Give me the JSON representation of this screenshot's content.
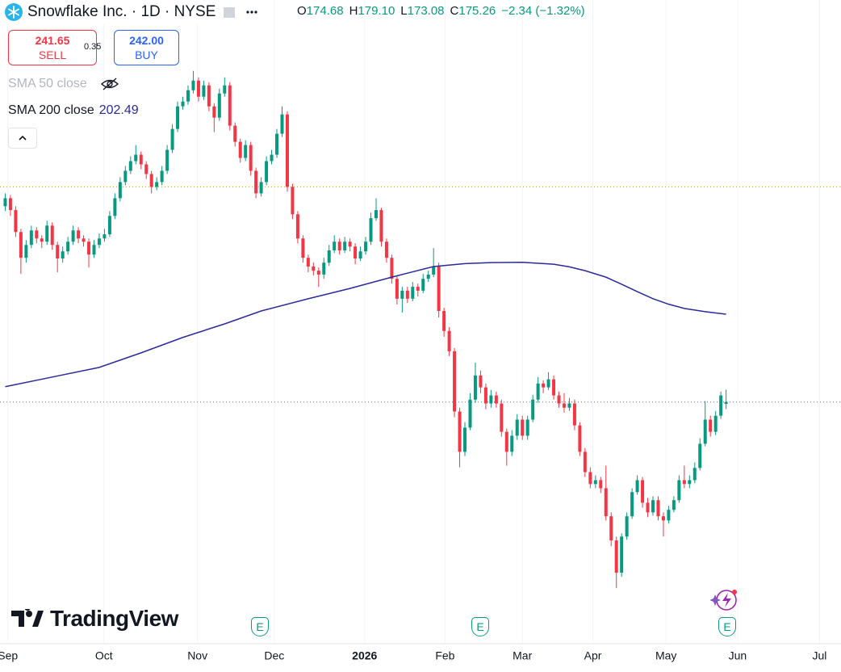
{
  "header": {
    "symbol": "Snowflake Inc. · 1D · NYSE",
    "ohlc": [
      {
        "label": "O",
        "value": "174.68"
      },
      {
        "label": "H",
        "value": "179.10"
      },
      {
        "label": "L",
        "value": "173.08"
      },
      {
        "label": "C",
        "value": "175.26"
      }
    ],
    "change": "−2.34 (−1.32%)"
  },
  "trade": {
    "sell": {
      "price": "241.65",
      "label": "SELL"
    },
    "spread": "0.35",
    "buy": {
      "price": "242.00",
      "label": "BUY"
    }
  },
  "indicators": {
    "sma50": "SMA 50 close",
    "sma200": "SMA 200 close"
  },
  "watermark": "TradingView",
  "events": [
    "E",
    "E",
    "E"
  ],
  "chart_data": {
    "type": "candlestick",
    "up_color": "#089981",
    "down_color": "#f23645",
    "xlim": [
      -1,
      160
    ],
    "ylim": [
      102,
      300
    ],
    "xticks": [
      {
        "value": 0.5,
        "label": "Sep"
      },
      {
        "value": 18.9,
        "label": "Oct"
      },
      {
        "value": 36.8,
        "label": "Nov"
      },
      {
        "value": 51.5,
        "label": "Dec"
      },
      {
        "value": 68.8,
        "label": "2026",
        "bold": true
      },
      {
        "value": 84.2,
        "label": "Feb"
      },
      {
        "value": 99,
        "label": "Mar"
      },
      {
        "value": 112.5,
        "label": "Apr"
      },
      {
        "value": 126.5,
        "label": "May"
      },
      {
        "value": 140.2,
        "label": "Jun"
      },
      {
        "value": 155.9,
        "label": "Jul"
      }
    ],
    "price_lines": [
      242,
      175.26
    ],
    "sma": {
      "color": "#2a2a9e",
      "x": [
        0,
        9,
        18,
        26,
        34,
        42,
        49,
        58,
        66,
        74,
        82,
        88,
        93,
        99,
        105,
        108,
        111,
        115,
        118,
        121,
        124,
        127,
        130,
        134,
        138
      ],
      "values": [
        180,
        183,
        186,
        190.5,
        195.3,
        199.5,
        203.5,
        207.3,
        210.5,
        214,
        217.3,
        218.2,
        218.5,
        218.6,
        218,
        217.2,
        216,
        214,
        211.8,
        209.5,
        207.3,
        205.6,
        204.3,
        203.3,
        202.49
      ]
    },
    "candles": [
      [
        236,
        240,
        234.5,
        238.5
      ],
      [
        238.5,
        239.5,
        233,
        234.8
      ],
      [
        234.8,
        236,
        226.5,
        228
      ],
      [
        228,
        229,
        215,
        220
      ],
      [
        220,
        225.5,
        218.5,
        224
      ],
      [
        224,
        230,
        223,
        228.5
      ],
      [
        228.5,
        229.5,
        224.5,
        226
      ],
      [
        226,
        227,
        223,
        225
      ],
      [
        225,
        231.5,
        224,
        230
      ],
      [
        230,
        231,
        222.5,
        224
      ],
      [
        224,
        225,
        215.5,
        219.8
      ],
      [
        219.8,
        223.5,
        218.5,
        222
      ],
      [
        222,
        226.5,
        221,
        225
      ],
      [
        225,
        230,
        224,
        228.5
      ],
      [
        228.5,
        229.5,
        224.5,
        226
      ],
      [
        226,
        227,
        223.5,
        225
      ],
      [
        225,
        226,
        217,
        221
      ],
      [
        221,
        225.5,
        220,
        224
      ],
      [
        224,
        227.5,
        223,
        226
      ],
      [
        226,
        229,
        225,
        227.3
      ],
      [
        227.3,
        234.5,
        226.5,
        233
      ],
      [
        233,
        240,
        232,
        238.5
      ],
      [
        238.5,
        245,
        237.5,
        243.5
      ],
      [
        243.5,
        248.5,
        242.5,
        247
      ],
      [
        247,
        251.5,
        246,
        250
      ],
      [
        250,
        255,
        249,
        252
      ],
      [
        252,
        253,
        247.5,
        249
      ],
      [
        249,
        250,
        244.5,
        246
      ],
      [
        246,
        247,
        240,
        242
      ],
      [
        242,
        245,
        241,
        243.5
      ],
      [
        243.5,
        248.5,
        242.5,
        247
      ],
      [
        247,
        255,
        246,
        253.5
      ],
      [
        253.5,
        261.5,
        252.5,
        260
      ],
      [
        260,
        268.5,
        259,
        267
      ],
      [
        267,
        270,
        266,
        268.5
      ],
      [
        268.5,
        273.5,
        267.5,
        272
      ],
      [
        272,
        278,
        271,
        275
      ],
      [
        275,
        276,
        268.5,
        270
      ],
      [
        270,
        275,
        269,
        273.5
      ],
      [
        273.5,
        274.5,
        265.5,
        267
      ],
      [
        267,
        268,
        259,
        263.5
      ],
      [
        263.5,
        272.5,
        262.5,
        271
      ],
      [
        271,
        276,
        270,
        273.5
      ],
      [
        273.5,
        274.5,
        259.5,
        261
      ],
      [
        261,
        262,
        254.5,
        256
      ],
      [
        256,
        257,
        249.5,
        251
      ],
      [
        251,
        256.5,
        250,
        255
      ],
      [
        255,
        256,
        245.5,
        247
      ],
      [
        247,
        248,
        238.5,
        240
      ],
      [
        240,
        245,
        239,
        243.5
      ],
      [
        243.5,
        251.5,
        242.5,
        250
      ],
      [
        250,
        253.5,
        249,
        252
      ],
      [
        252,
        260,
        251,
        258.5
      ],
      [
        258.5,
        267,
        257.5,
        264.5
      ],
      [
        264.5,
        265.5,
        240.5,
        242
      ],
      [
        242,
        243,
        232,
        233.5
      ],
      [
        233.5,
        234.5,
        224.5,
        226
      ],
      [
        226,
        227,
        218.5,
        220
      ],
      [
        220,
        221,
        215.5,
        217.3
      ],
      [
        217.3,
        218.5,
        214.5,
        216
      ],
      [
        216,
        217,
        211,
        214.8
      ],
      [
        214.8,
        220,
        213.5,
        218.5
      ],
      [
        218.5,
        224,
        217.5,
        222.3
      ],
      [
        222.3,
        227,
        221.5,
        225
      ],
      [
        225,
        226,
        221,
        222.3
      ],
      [
        222.3,
        226.5,
        221.5,
        225
      ],
      [
        225,
        226,
        222,
        223.5
      ],
      [
        223.5,
        224.5,
        218,
        219.8
      ],
      [
        219.8,
        223.5,
        219,
        222
      ],
      [
        222,
        226.5,
        221,
        225
      ],
      [
        225,
        234,
        224,
        232.3
      ],
      [
        232.3,
        238.5,
        231.5,
        234.8
      ],
      [
        234.8,
        235.5,
        223.5,
        225
      ],
      [
        225,
        226,
        218.5,
        220
      ],
      [
        220,
        221,
        212,
        213.5
      ],
      [
        213.5,
        214.5,
        205.5,
        207.3
      ],
      [
        207.3,
        211,
        203,
        209.8
      ],
      [
        209.8,
        211,
        206,
        207.3
      ],
      [
        207.3,
        212.5,
        206.5,
        211
      ],
      [
        211,
        212,
        208,
        209.8
      ],
      [
        209.8,
        215,
        209,
        213.5
      ],
      [
        213.5,
        216,
        212.5,
        214.8
      ],
      [
        214.8,
        223,
        214,
        217.3
      ],
      [
        217.3,
        218.5,
        201.5,
        203.5
      ],
      [
        203.5,
        204.5,
        195.5,
        197.3
      ],
      [
        197.3,
        198.5,
        189.5,
        191
      ],
      [
        191,
        192,
        170.5,
        172.3
      ],
      [
        172.3,
        173.5,
        155,
        159.8
      ],
      [
        159.8,
        169,
        158.5,
        167.3
      ],
      [
        167.3,
        178,
        166.5,
        176
      ],
      [
        176,
        187.5,
        175,
        183.5
      ],
      [
        183.5,
        185,
        178,
        179.8
      ],
      [
        179.8,
        181,
        173,
        174.8
      ],
      [
        174.8,
        179,
        173.5,
        177.3
      ],
      [
        177.3,
        178.5,
        173.5,
        174.8
      ],
      [
        174.8,
        176,
        164.5,
        166
      ],
      [
        166,
        167,
        155.5,
        159.8
      ],
      [
        159.8,
        166.5,
        158.5,
        164.8
      ],
      [
        164.8,
        171.5,
        163.5,
        169.8
      ],
      [
        169.8,
        171,
        163.5,
        164.8
      ],
      [
        164.8,
        171,
        163.5,
        169.8
      ],
      [
        169.8,
        177.5,
        169,
        176
      ],
      [
        176,
        183,
        175,
        181
      ],
      [
        181,
        182,
        178,
        179.8
      ],
      [
        179.8,
        184.5,
        179,
        182.3
      ],
      [
        182.3,
        183.5,
        176,
        177.3
      ],
      [
        177.3,
        178.5,
        173.5,
        174.8
      ],
      [
        174.8,
        178,
        172,
        173.5
      ],
      [
        173.5,
        176.5,
        172.5,
        174.8
      ],
      [
        174.8,
        176,
        166.5,
        168
      ],
      [
        168,
        169,
        158.5,
        159.8
      ],
      [
        159.8,
        161,
        152,
        153.5
      ],
      [
        153.5,
        155,
        148.5,
        149.8
      ],
      [
        149.8,
        152.5,
        148.5,
        151
      ],
      [
        151,
        152,
        147,
        148.5
      ],
      [
        148.5,
        155.5,
        138.5,
        139.8
      ],
      [
        139.8,
        141,
        130.5,
        132.3
      ],
      [
        132.3,
        133.5,
        117.5,
        122.3
      ],
      [
        122.3,
        134.5,
        121,
        133.5
      ],
      [
        133.5,
        141,
        132.5,
        139.8
      ],
      [
        139.8,
        148.5,
        139,
        147.3
      ],
      [
        147.3,
        152.5,
        146.5,
        151
      ],
      [
        151,
        152,
        142.5,
        144
      ],
      [
        144,
        145.5,
        139.5,
        141
      ],
      [
        141,
        146,
        140,
        144.8
      ],
      [
        144.8,
        146,
        138.5,
        139.8
      ],
      [
        139.8,
        141,
        133.5,
        138.5
      ],
      [
        138.5,
        143,
        137.5,
        141.8
      ],
      [
        141.8,
        146,
        141,
        144.8
      ],
      [
        144.8,
        152.5,
        144,
        151
      ],
      [
        151,
        155.5,
        148.5,
        149.8
      ],
      [
        149.8,
        152.5,
        148.5,
        151
      ],
      [
        151,
        156.5,
        150,
        154.8
      ],
      [
        154.8,
        164,
        154,
        162.3
      ],
      [
        162.3,
        175.5,
        161.5,
        169.8
      ],
      [
        169.8,
        171,
        164.5,
        166
      ],
      [
        166,
        172.5,
        165,
        171
      ],
      [
        171,
        178.5,
        170,
        177.3
      ],
      [
        174.68,
        179.1,
        173.08,
        175.26
      ]
    ]
  }
}
